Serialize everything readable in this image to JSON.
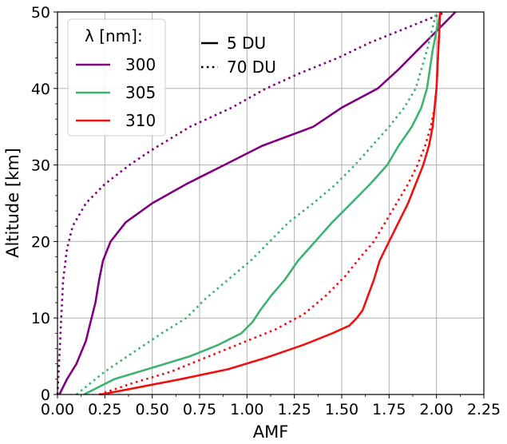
{
  "chart_data": {
    "type": "line",
    "xlabel": "AMF",
    "ylabel": "Altitude [km]",
    "xlim": [
      0.0,
      2.25
    ],
    "ylim": [
      0,
      50
    ],
    "xticks": [
      "0.00",
      "0.25",
      "0.50",
      "0.75",
      "1.00",
      "1.25",
      "1.50",
      "1.75",
      "2.00",
      "2.25"
    ],
    "yticks": [
      "0",
      "10",
      "20",
      "30",
      "40",
      "50"
    ],
    "grid": true,
    "legend": {
      "placement": "top-left",
      "title": "λ [nm]:",
      "entries": [
        {
          "label": "300",
          "color": "#800080"
        },
        {
          "label": "305",
          "color": "#3cb371"
        },
        {
          "label": "310",
          "color": "#ee1111"
        }
      ]
    },
    "style_legend": {
      "placement": "top-center",
      "entries": [
        {
          "label": "5 DU",
          "style": "solid"
        },
        {
          "label": "70 DU",
          "style": "dotted"
        }
      ]
    },
    "series": [
      {
        "wavelength": "300",
        "ozone": "5 DU",
        "style": "solid",
        "color": "#800080",
        "points": [
          [
            0.01,
            0
          ],
          [
            0.05,
            2
          ],
          [
            0.1,
            4
          ],
          [
            0.15,
            7
          ],
          [
            0.17,
            9
          ],
          [
            0.2,
            12
          ],
          [
            0.22,
            15
          ],
          [
            0.24,
            17.5
          ],
          [
            0.28,
            20
          ],
          [
            0.36,
            22.5
          ],
          [
            0.5,
            25
          ],
          [
            0.68,
            27.5
          ],
          [
            0.88,
            30
          ],
          [
            1.08,
            32.5
          ],
          [
            1.35,
            35
          ],
          [
            1.5,
            37.5
          ],
          [
            1.69,
            40
          ],
          [
            1.8,
            42.5
          ],
          [
            1.9,
            45
          ],
          [
            2.0,
            47.5
          ],
          [
            2.1,
            50
          ]
        ]
      },
      {
        "wavelength": "300",
        "ozone": "70 DU",
        "style": "dotted",
        "color": "#800080",
        "points": [
          [
            0.0,
            0
          ],
          [
            0.01,
            5
          ],
          [
            0.02,
            10
          ],
          [
            0.03,
            15
          ],
          [
            0.05,
            19
          ],
          [
            0.08,
            22
          ],
          [
            0.15,
            25
          ],
          [
            0.25,
            27.5
          ],
          [
            0.38,
            30
          ],
          [
            0.5,
            32
          ],
          [
            0.7,
            35
          ],
          [
            0.92,
            37.5
          ],
          [
            1.1,
            40
          ],
          [
            1.28,
            42
          ],
          [
            1.48,
            44
          ],
          [
            1.65,
            46
          ],
          [
            1.85,
            48
          ],
          [
            2.05,
            50
          ]
        ]
      },
      {
        "wavelength": "305",
        "ozone": "5 DU",
        "style": "solid",
        "color": "#3cb371",
        "points": [
          [
            0.14,
            0
          ],
          [
            0.3,
            2
          ],
          [
            0.5,
            3.5
          ],
          [
            0.7,
            5
          ],
          [
            0.85,
            6.5
          ],
          [
            0.97,
            8
          ],
          [
            1.03,
            9.5
          ],
          [
            1.07,
            11
          ],
          [
            1.13,
            13
          ],
          [
            1.2,
            15
          ],
          [
            1.27,
            17.5
          ],
          [
            1.36,
            20
          ],
          [
            1.45,
            22.5
          ],
          [
            1.55,
            25
          ],
          [
            1.65,
            27.5
          ],
          [
            1.74,
            30
          ],
          [
            1.8,
            32.5
          ],
          [
            1.87,
            35
          ],
          [
            1.92,
            37.5
          ],
          [
            1.95,
            40
          ],
          [
            1.98,
            45
          ],
          [
            2.02,
            50
          ]
        ]
      },
      {
        "wavelength": "305",
        "ozone": "70 DU",
        "style": "dotted",
        "color": "#3cb371",
        "points": [
          [
            0.1,
            0
          ],
          [
            0.25,
            3
          ],
          [
            0.4,
            5.5
          ],
          [
            0.55,
            8
          ],
          [
            0.68,
            10
          ],
          [
            0.78,
            12.5
          ],
          [
            0.9,
            15
          ],
          [
            1.02,
            17.5
          ],
          [
            1.12,
            20
          ],
          [
            1.22,
            22.5
          ],
          [
            1.35,
            25
          ],
          [
            1.47,
            27.5
          ],
          [
            1.57,
            30
          ],
          [
            1.66,
            32.5
          ],
          [
            1.75,
            35
          ],
          [
            1.83,
            37.5
          ],
          [
            1.89,
            40
          ],
          [
            1.95,
            45
          ],
          [
            2.0,
            50
          ]
        ]
      },
      {
        "wavelength": "310",
        "ozone": "5 DU",
        "style": "solid",
        "color": "#ee1111",
        "points": [
          [
            0.23,
            0
          ],
          [
            0.4,
            0.8
          ],
          [
            0.65,
            2
          ],
          [
            0.9,
            3.3
          ],
          [
            1.1,
            4.8
          ],
          [
            1.3,
            6.5
          ],
          [
            1.45,
            8
          ],
          [
            1.54,
            9
          ],
          [
            1.58,
            10
          ],
          [
            1.61,
            11
          ],
          [
            1.64,
            13
          ],
          [
            1.67,
            15
          ],
          [
            1.7,
            17.5
          ],
          [
            1.75,
            20
          ],
          [
            1.8,
            22.5
          ],
          [
            1.85,
            25
          ],
          [
            1.89,
            27.5
          ],
          [
            1.93,
            30
          ],
          [
            1.96,
            32.5
          ],
          [
            1.98,
            35
          ],
          [
            2.0,
            40
          ],
          [
            2.01,
            45
          ],
          [
            2.02,
            50
          ]
        ]
      },
      {
        "wavelength": "310",
        "ozone": "70 DU",
        "style": "dotted",
        "color": "#ee1111",
        "points": [
          [
            0.22,
            0
          ],
          [
            0.4,
            1.5
          ],
          [
            0.6,
            3
          ],
          [
            0.8,
            5
          ],
          [
            1.0,
            7
          ],
          [
            1.15,
            8.5
          ],
          [
            1.3,
            10.5
          ],
          [
            1.42,
            13
          ],
          [
            1.52,
            15.5
          ],
          [
            1.6,
            18
          ],
          [
            1.67,
            20
          ],
          [
            1.73,
            22.5
          ],
          [
            1.79,
            25
          ],
          [
            1.85,
            27.5
          ],
          [
            1.9,
            30
          ],
          [
            1.94,
            32.5
          ],
          [
            1.97,
            35
          ],
          [
            1.99,
            37.5
          ],
          [
            2.0,
            40
          ],
          [
            2.01,
            45
          ],
          [
            2.02,
            50
          ]
        ]
      }
    ]
  }
}
